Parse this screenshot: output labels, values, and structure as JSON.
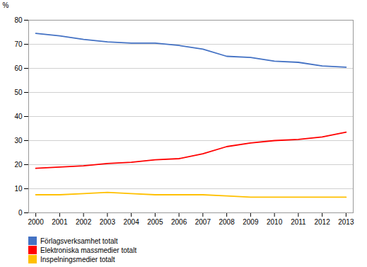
{
  "chart_data": {
    "type": "line",
    "x": [
      2000,
      2001,
      2002,
      2003,
      2004,
      2005,
      2006,
      2007,
      2008,
      2009,
      2010,
      2011,
      2012,
      2013
    ],
    "series": [
      {
        "name": "Förlagsverksamhet totalt",
        "color": "#4472C4",
        "values": [
          74.5,
          73.5,
          72.0,
          71.0,
          70.5,
          70.5,
          69.5,
          68.0,
          65.0,
          64.5,
          63.0,
          62.5,
          61.0,
          60.5
        ]
      },
      {
        "name": "Elektroniska massmedier totalt",
        "color": "#FF0000",
        "values": [
          18.5,
          19.0,
          19.5,
          20.5,
          21.0,
          22.0,
          22.5,
          24.5,
          27.5,
          29.0,
          30.0,
          30.5,
          31.5,
          33.5
        ]
      },
      {
        "name": "Inspelningsmedier totalt",
        "color": "#FFC000",
        "values": [
          7.5,
          7.5,
          8.0,
          8.5,
          8.0,
          7.5,
          7.5,
          7.5,
          7.0,
          6.5,
          6.5,
          6.5,
          6.5,
          6.5
        ]
      }
    ],
    "y_label": "%",
    "xlim": [
      1999.7,
      2013.3
    ],
    "xticks": [
      2000,
      2001,
      2002,
      2003,
      2004,
      2005,
      2006,
      2007,
      2008,
      2009,
      2010,
      2011,
      2012,
      2013
    ],
    "ylim": [
      0,
      80
    ],
    "yticks": [
      0,
      10,
      20,
      30,
      40,
      50,
      60,
      70,
      80
    ],
    "grid": true,
    "legend": "bottom"
  }
}
